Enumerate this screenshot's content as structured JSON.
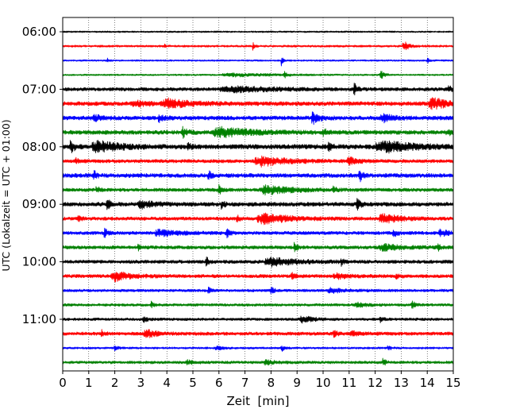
{
  "chart_data": {
    "type": "line",
    "xlabel": "Zeit  [min]",
    "ylabel": "UTC (Lokalzeit = UTC + 01:00)",
    "xlim": [
      0,
      15
    ],
    "x_ticks": [
      0,
      1,
      2,
      3,
      4,
      5,
      6,
      7,
      8,
      9,
      10,
      11,
      12,
      13,
      14,
      15
    ],
    "x_grid": "dotted vertical lines at each minute",
    "y_ticks": [
      "06:00",
      "07:00",
      "08:00",
      "09:00",
      "10:00",
      "11:00"
    ],
    "y_tick_trace_index": [
      0,
      4,
      8,
      12,
      16,
      20
    ],
    "trace_colors": [
      "#000000",
      "#ff0000",
      "#0000ff",
      "#008000"
    ],
    "traces": [
      {
        "start": "06:00",
        "color": "#000000",
        "level": 0.12,
        "events": []
      },
      {
        "start": "06:15",
        "color": "#ff0000",
        "level": 0.15,
        "events": [
          {
            "t": 3.9,
            "a": 0.25,
            "d": 0.06
          },
          {
            "t": 7.3,
            "a": 0.55,
            "d": 0.05
          },
          {
            "t": 13.1,
            "a": 0.8,
            "d": 0.15
          }
        ]
      },
      {
        "start": "06:30",
        "color": "#0000ff",
        "level": 0.12,
        "events": [
          {
            "t": 1.7,
            "a": 0.35,
            "d": 0.05
          },
          {
            "t": 8.4,
            "a": 0.9,
            "d": 0.04
          },
          {
            "t": 14.0,
            "a": 0.5,
            "d": 0.05
          }
        ]
      },
      {
        "start": "06:45",
        "color": "#008000",
        "level": 0.12,
        "events": [
          {
            "t": 8.5,
            "a": 0.5,
            "d": 0.08
          },
          {
            "t": 12.2,
            "a": 0.75,
            "d": 0.1
          },
          {
            "t": 6.5,
            "a": 0.25,
            "d": 1.2
          }
        ]
      },
      {
        "start": "07:00",
        "color": "#000000",
        "level": 0.25,
        "events": [
          {
            "t": 11.2,
            "a": 0.8,
            "d": 0.08
          },
          {
            "t": 6.5,
            "a": 0.35,
            "d": 1.5
          },
          {
            "t": 14.8,
            "a": 0.35,
            "d": 0.3
          }
        ]
      },
      {
        "start": "07:15",
        "color": "#ff0000",
        "level": 0.3,
        "events": [
          {
            "t": 4.0,
            "a": 0.6,
            "d": 0.7
          },
          {
            "t": 14.2,
            "a": 0.75,
            "d": 0.5
          },
          {
            "t": 2.8,
            "a": 0.35,
            "d": 0.5
          }
        ]
      },
      {
        "start": "07:30",
        "color": "#0000ff",
        "level": 0.3,
        "events": [
          {
            "t": 1.2,
            "a": 0.45,
            "d": 0.2
          },
          {
            "t": 3.7,
            "a": 0.45,
            "d": 0.15
          },
          {
            "t": 9.6,
            "a": 0.8,
            "d": 0.2
          },
          {
            "t": 12.3,
            "a": 0.5,
            "d": 0.3
          }
        ]
      },
      {
        "start": "07:45",
        "color": "#008000",
        "level": 0.3,
        "events": [
          {
            "t": 4.6,
            "a": 0.8,
            "d": 0.12
          },
          {
            "t": 6.0,
            "a": 0.7,
            "d": 0.9
          },
          {
            "t": 10.0,
            "a": 0.55,
            "d": 0.1
          },
          {
            "t": 14.8,
            "a": 0.4,
            "d": 0.3
          }
        ]
      },
      {
        "start": "08:00",
        "color": "#000000",
        "level": 0.35,
        "events": [
          {
            "t": 0.3,
            "a": 0.95,
            "d": 0.1
          },
          {
            "t": 1.3,
            "a": 0.85,
            "d": 0.6
          },
          {
            "t": 4.8,
            "a": 0.5,
            "d": 0.1
          },
          {
            "t": 10.2,
            "a": 0.9,
            "d": 0.08
          },
          {
            "t": 12.3,
            "a": 0.75,
            "d": 0.9
          }
        ]
      },
      {
        "start": "08:15",
        "color": "#ff0000",
        "level": 0.25,
        "events": [
          {
            "t": 0.5,
            "a": 0.35,
            "d": 0.1
          },
          {
            "t": 7.6,
            "a": 0.7,
            "d": 0.8
          },
          {
            "t": 11.0,
            "a": 0.5,
            "d": 0.25
          }
        ]
      },
      {
        "start": "08:30",
        "color": "#0000ff",
        "level": 0.3,
        "events": [
          {
            "t": 1.2,
            "a": 0.7,
            "d": 0.08
          },
          {
            "t": 5.6,
            "a": 0.55,
            "d": 0.1
          },
          {
            "t": 11.4,
            "a": 0.9,
            "d": 0.08
          }
        ]
      },
      {
        "start": "08:45",
        "color": "#008000",
        "level": 0.25,
        "events": [
          {
            "t": 1.3,
            "a": 0.5,
            "d": 0.1
          },
          {
            "t": 6.0,
            "a": 0.75,
            "d": 0.1
          },
          {
            "t": 7.8,
            "a": 0.6,
            "d": 0.8
          },
          {
            "t": 10.4,
            "a": 0.4,
            "d": 0.1
          }
        ]
      },
      {
        "start": "09:00",
        "color": "#000000",
        "level": 0.3,
        "events": [
          {
            "t": 1.7,
            "a": 0.8,
            "d": 0.1
          },
          {
            "t": 3.0,
            "a": 0.55,
            "d": 0.4
          },
          {
            "t": 6.1,
            "a": 0.7,
            "d": 0.08
          },
          {
            "t": 11.3,
            "a": 0.8,
            "d": 0.1
          }
        ]
      },
      {
        "start": "09:15",
        "color": "#ff0000",
        "level": 0.25,
        "events": [
          {
            "t": 0.6,
            "a": 0.4,
            "d": 0.08
          },
          {
            "t": 7.7,
            "a": 0.75,
            "d": 0.8
          },
          {
            "t": 12.3,
            "a": 0.7,
            "d": 0.5
          },
          {
            "t": 6.7,
            "a": 0.5,
            "d": 0.08
          }
        ]
      },
      {
        "start": "09:30",
        "color": "#0000ff",
        "level": 0.25,
        "events": [
          {
            "t": 1.6,
            "a": 0.7,
            "d": 0.08
          },
          {
            "t": 3.7,
            "a": 0.5,
            "d": 0.5
          },
          {
            "t": 6.3,
            "a": 0.6,
            "d": 0.1
          },
          {
            "t": 12.7,
            "a": 0.6,
            "d": 0.1
          },
          {
            "t": 14.5,
            "a": 0.5,
            "d": 0.2
          }
        ]
      },
      {
        "start": "09:45",
        "color": "#008000",
        "level": 0.25,
        "events": [
          {
            "t": 2.9,
            "a": 0.4,
            "d": 0.08
          },
          {
            "t": 8.9,
            "a": 0.8,
            "d": 0.08
          },
          {
            "t": 12.3,
            "a": 0.4,
            "d": 0.6
          },
          {
            "t": 14.4,
            "a": 0.5,
            "d": 0.08
          }
        ]
      },
      {
        "start": "10:00",
        "color": "#000000",
        "level": 0.25,
        "events": [
          {
            "t": 5.5,
            "a": 0.75,
            "d": 0.08
          },
          {
            "t": 8.0,
            "a": 0.55,
            "d": 0.8
          },
          {
            "t": 10.7,
            "a": 0.5,
            "d": 0.08
          }
        ]
      },
      {
        "start": "10:15",
        "color": "#ff0000",
        "level": 0.25,
        "events": [
          {
            "t": 2.0,
            "a": 0.65,
            "d": 0.5
          },
          {
            "t": 8.8,
            "a": 0.55,
            "d": 0.1
          },
          {
            "t": 12.8,
            "a": 0.5,
            "d": 0.1
          },
          {
            "t": 10.5,
            "a": 0.35,
            "d": 0.4
          }
        ]
      },
      {
        "start": "10:30",
        "color": "#0000ff",
        "level": 0.2,
        "events": [
          {
            "t": 5.6,
            "a": 0.4,
            "d": 0.1
          },
          {
            "t": 8.0,
            "a": 0.5,
            "d": 0.1
          },
          {
            "t": 10.3,
            "a": 0.35,
            "d": 0.4
          }
        ]
      },
      {
        "start": "10:45",
        "color": "#008000",
        "level": 0.2,
        "events": [
          {
            "t": 3.4,
            "a": 0.4,
            "d": 0.08
          },
          {
            "t": 13.4,
            "a": 0.75,
            "d": 0.08
          },
          {
            "t": 11.3,
            "a": 0.3,
            "d": 0.3
          }
        ]
      },
      {
        "start": "11:00",
        "color": "#000000",
        "level": 0.2,
        "events": [
          {
            "t": 3.1,
            "a": 0.4,
            "d": 0.1
          },
          {
            "t": 9.2,
            "a": 0.55,
            "d": 0.3
          },
          {
            "t": 12.2,
            "a": 0.6,
            "d": 0.08
          }
        ]
      },
      {
        "start": "11:15",
        "color": "#ff0000",
        "level": 0.25,
        "events": [
          {
            "t": 1.5,
            "a": 0.4,
            "d": 0.1
          },
          {
            "t": 3.2,
            "a": 0.6,
            "d": 0.3
          },
          {
            "t": 10.4,
            "a": 0.7,
            "d": 0.08
          },
          {
            "t": 11.1,
            "a": 0.4,
            "d": 0.2
          }
        ]
      },
      {
        "start": "11:30",
        "color": "#0000ff",
        "level": 0.15,
        "events": [
          {
            "t": 2.0,
            "a": 0.3,
            "d": 0.1
          },
          {
            "t": 5.9,
            "a": 0.3,
            "d": 0.2
          },
          {
            "t": 8.4,
            "a": 0.5,
            "d": 0.08
          },
          {
            "t": 12.5,
            "a": 0.35,
            "d": 0.1
          }
        ]
      },
      {
        "start": "11:45",
        "color": "#008000",
        "level": 0.2,
        "events": [
          {
            "t": 4.8,
            "a": 0.3,
            "d": 0.2
          },
          {
            "t": 7.8,
            "a": 0.3,
            "d": 0.3
          },
          {
            "t": 12.3,
            "a": 0.6,
            "d": 0.08
          }
        ]
      }
    ]
  }
}
